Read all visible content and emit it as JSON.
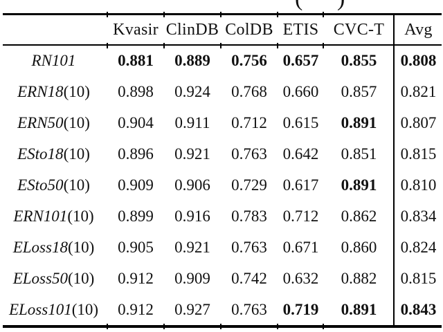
{
  "caption": {
    "open_paren": "(",
    "close_paren": ")"
  },
  "table": {
    "columns": [
      "",
      "Kvasir",
      "ClinDB",
      "ColDB",
      "ETIS",
      "CVC-T",
      "Avg"
    ],
    "rows": [
      {
        "label": "RN101",
        "suffix": "",
        "values": [
          "0.881",
          "0.889",
          "0.756",
          "0.657",
          "0.855",
          "0.808"
        ],
        "bold": [
          0,
          1,
          2,
          3,
          4,
          5
        ]
      },
      {
        "label": "ERN18",
        "suffix": "(10)",
        "values": [
          "0.898",
          "0.924",
          "0.768",
          "0.660",
          "0.857",
          "0.821"
        ],
        "bold": []
      },
      {
        "label": "ERN50",
        "suffix": "(10)",
        "values": [
          "0.904",
          "0.911",
          "0.712",
          "0.615",
          "0.891",
          "0.807"
        ],
        "bold": [
          4
        ]
      },
      {
        "label": "ESto18",
        "suffix": "(10)",
        "values": [
          "0.896",
          "0.921",
          "0.763",
          "0.642",
          "0.851",
          "0.815"
        ],
        "bold": []
      },
      {
        "label": "ESto50",
        "suffix": "(10)",
        "values": [
          "0.909",
          "0.906",
          "0.729",
          "0.617",
          "0.891",
          "0.810"
        ],
        "bold": [
          4
        ]
      },
      {
        "label": "ERN101",
        "suffix": "(10)",
        "values": [
          "0.899",
          "0.916",
          "0.783",
          "0.712",
          "0.862",
          "0.834"
        ],
        "bold": []
      },
      {
        "label": "ELoss18",
        "suffix": "(10)",
        "values": [
          "0.905",
          "0.921",
          "0.763",
          "0.671",
          "0.860",
          "0.824"
        ],
        "bold": []
      },
      {
        "label": "ELoss50",
        "suffix": "(10)",
        "values": [
          "0.912",
          "0.909",
          "0.742",
          "0.632",
          "0.882",
          "0.815"
        ],
        "bold": []
      },
      {
        "label": "ELoss101",
        "suffix": "(10)",
        "values": [
          "0.912",
          "0.927",
          "0.763",
          "0.719",
          "0.891",
          "0.843"
        ],
        "bold": [
          3,
          4,
          5
        ]
      }
    ]
  },
  "colors": {
    "background": "#ffffff",
    "text": "#111111",
    "rule": "#000000"
  }
}
